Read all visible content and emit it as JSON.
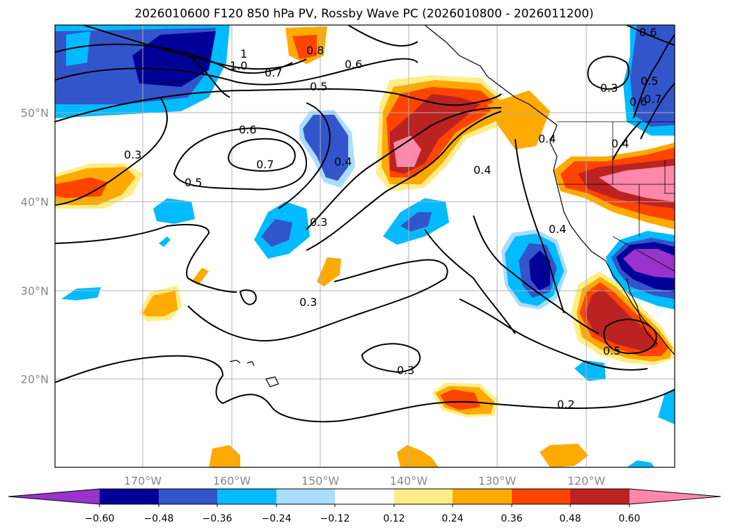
{
  "title": "2026010600 F120 850 hPa PV, Rossby Wave PC (2026010800 - 2026011200)",
  "longitude_labels": [
    "170°W",
    "160°W",
    "150°W",
    "140°W",
    "130°W",
    "120°W"
  ],
  "latitude_labels": [
    "50°N",
    "40°N",
    "30°N",
    "20°N"
  ],
  "colorbar": {
    "tick_labels": [
      "−0.60",
      "−0.48",
      "−0.36",
      "−0.24",
      "−0.12",
      "0.12",
      "0.24",
      "0.36",
      "0.48",
      "0.60"
    ],
    "colors": [
      "#9933cc",
      "#000099",
      "#3355cc",
      "#00bbff",
      "#aaddff",
      "#ffffff",
      "#ffee88",
      "#ffaa00",
      "#ff4400",
      "#bb2222",
      "#ff88aa"
    ]
  },
  "contour_labels": [
    "1",
    "1.0",
    "0.8",
    "0.7",
    "0.6",
    "0.5",
    "0.6",
    "0.7",
    "0.5",
    "0.3",
    "0.4",
    "0.3",
    "0.4",
    "0.3",
    "0.3",
    "0.2",
    "0.4",
    "0.3",
    "0.6",
    "0.5",
    "0.7",
    "0.6",
    "0.4",
    "0.5",
    "0.4"
  ]
}
